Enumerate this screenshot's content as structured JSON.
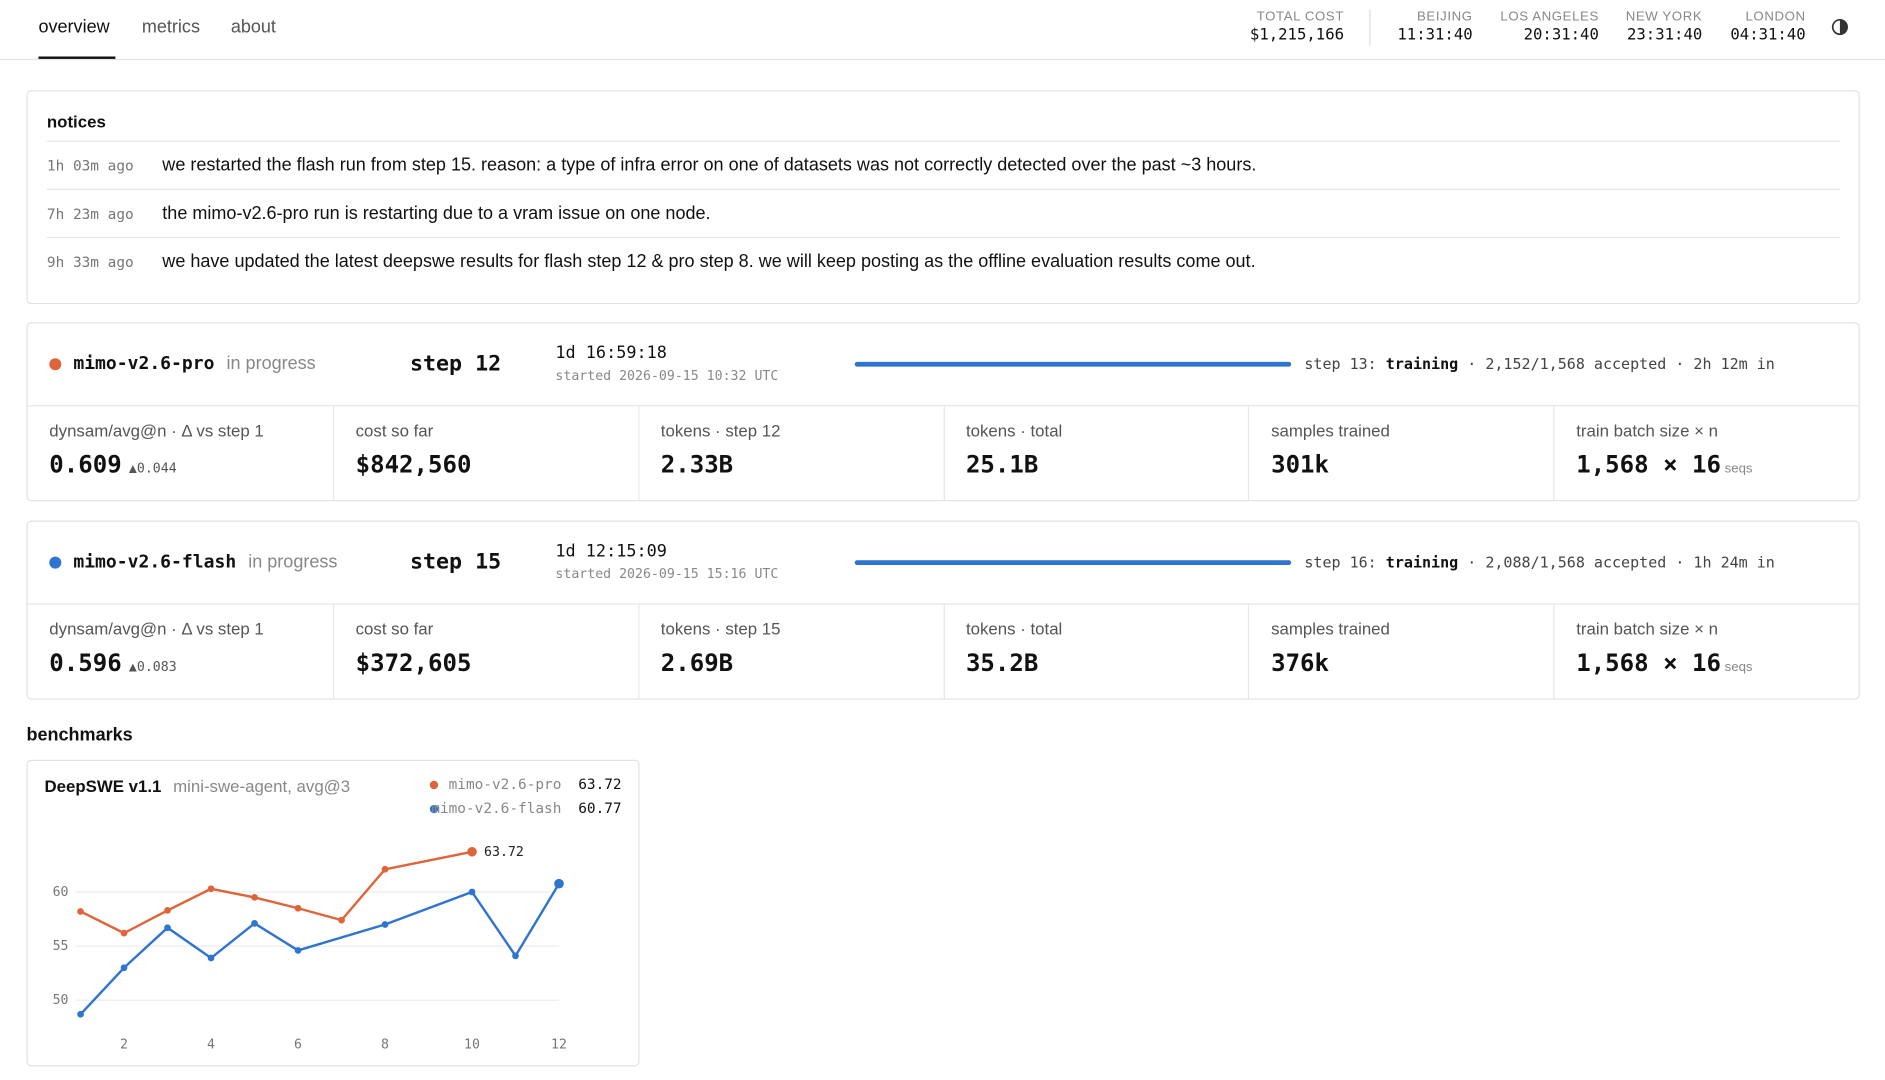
{
  "nav": {
    "tabs": [
      "overview",
      "metrics",
      "about"
    ]
  },
  "clocks": [
    {
      "label": "TOTAL COST",
      "value": "$1,215,166"
    },
    {
      "label": "BEIJING",
      "value": "11:31:40"
    },
    {
      "label": "LOS ANGELES",
      "value": "20:31:40"
    },
    {
      "label": "NEW YORK",
      "value": "23:31:40"
    },
    {
      "label": "LONDON",
      "value": "04:31:40"
    }
  ],
  "notices": {
    "title": "notices",
    "items": [
      {
        "time": "1h 03m ago",
        "text": "we restarted the flash run from step 15. reason: a type of infra error on one of datasets was not correctly detected over the past ~3 hours."
      },
      {
        "time": "7h 23m ago",
        "text": "the mimo-v2.6-pro run is restarting due to a vram issue on one node."
      },
      {
        "time": "9h 33m ago",
        "text": "we have updated the latest deepswe results for flash step 12 & pro step 8. we will keep posting as the offline evaluation results come out."
      }
    ]
  },
  "runs": [
    {
      "name": "mimo-v2.6-pro",
      "color": "#e0643a",
      "status": "in progress",
      "step": "step 12",
      "elapsed": "1d 16:59:18",
      "started": "started 2026-09-15 10:32 UTC",
      "progress_prefix": "step 13:",
      "progress_state": "training",
      "progress_suffix": "· 2,152/1,568 accepted · 2h 12m in",
      "metrics": [
        {
          "label": "dynsam/avg@n · Δ vs step 1",
          "value": "0.609",
          "delta": "▲0.044"
        },
        {
          "label": "cost so far",
          "value": "$842,560"
        },
        {
          "label": "tokens · step 12",
          "value": "2.33B"
        },
        {
          "label": "tokens · total",
          "value": "25.1B"
        },
        {
          "label": "samples trained",
          "value": "301k"
        },
        {
          "label": "train batch size × n",
          "value": "1,568 × 16",
          "unit": "seqs"
        }
      ]
    },
    {
      "name": "mimo-v2.6-flash",
      "color": "#2f74d0",
      "status": "in progress",
      "step": "step 15",
      "elapsed": "1d 12:15:09",
      "started": "started 2026-09-15 15:16 UTC",
      "progress_prefix": "step 16:",
      "progress_state": "training",
      "progress_suffix": "· 2,088/1,568 accepted · 1h 24m in",
      "metrics": [
        {
          "label": "dynsam/avg@n · Δ vs step 1",
          "value": "0.596",
          "delta": "▲0.083"
        },
        {
          "label": "cost so far",
          "value": "$372,605"
        },
        {
          "label": "tokens · step 15",
          "value": "2.69B"
        },
        {
          "label": "tokens · total",
          "value": "35.2B"
        },
        {
          "label": "samples trained",
          "value": "376k"
        },
        {
          "label": "train batch size × n",
          "value": "1,568 × 16",
          "unit": "seqs"
        }
      ]
    }
  ],
  "benchmarks_title": "benchmarks",
  "chart_data": {
    "type": "line",
    "title": "DeepSWE v1.1",
    "subtitle": "mini-swe-agent, avg@3",
    "xlim": [
      1,
      12
    ],
    "xticks": [
      2,
      4,
      6,
      8,
      10,
      12
    ],
    "ylim": [
      48,
      64
    ],
    "yticks": [
      50,
      55,
      60
    ],
    "grid": true,
    "series": [
      {
        "name": "mimo-v2.6-pro",
        "color": "#e0643a",
        "x": [
          1,
          2,
          3,
          4,
          5,
          6,
          7,
          8,
          10
        ],
        "values": [
          58.2,
          56.2,
          58.3,
          60.3,
          59.5,
          58.5,
          57.4,
          62.1,
          63.72
        ]
      },
      {
        "name": "mimo-v2.6-flash",
        "color": "#2f74d0",
        "x": [
          1,
          2,
          3,
          4,
          5,
          6,
          8,
          10,
          11,
          12
        ],
        "values": [
          48.7,
          53.0,
          56.7,
          53.9,
          57.1,
          54.6,
          57.0,
          60.0,
          54.1,
          60.77
        ]
      }
    ]
  }
}
